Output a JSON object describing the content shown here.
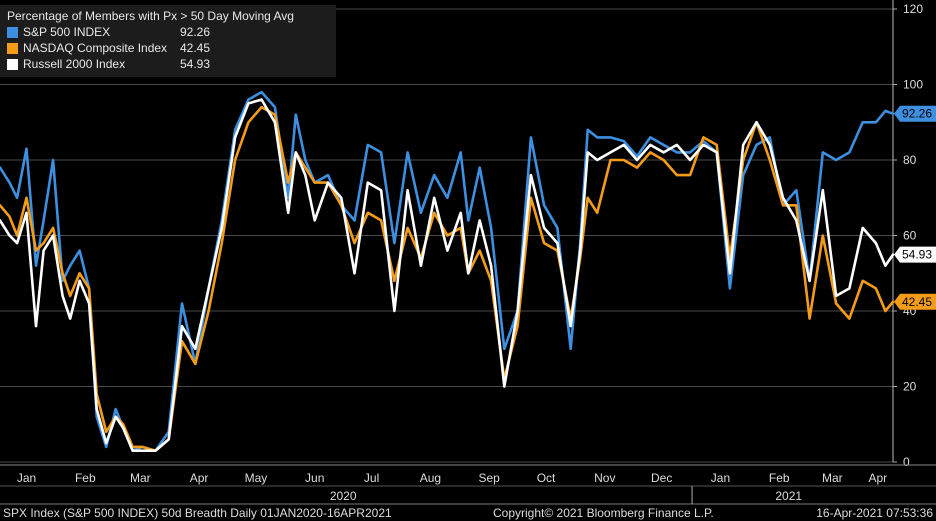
{
  "chart_data": {
    "type": "line",
    "title": "Percentage of Members with Px > 50 Day Moving Avg",
    "ylim": [
      0,
      120
    ],
    "yticks": [
      0,
      20,
      40,
      60,
      80,
      100,
      120
    ],
    "x_start": "2020-01-01",
    "x_end": "2021-04-16",
    "month_ticks": [
      {
        "label": "Jan",
        "date": "2020-01-15"
      },
      {
        "label": "Feb",
        "date": "2020-02-15"
      },
      {
        "label": "Mar",
        "date": "2020-03-15"
      },
      {
        "label": "Apr",
        "date": "2020-04-15"
      },
      {
        "label": "May",
        "date": "2020-05-15"
      },
      {
        "label": "Jun",
        "date": "2020-06-15"
      },
      {
        "label": "Jul",
        "date": "2020-07-15"
      },
      {
        "label": "Aug",
        "date": "2020-08-15"
      },
      {
        "label": "Sep",
        "date": "2020-09-15"
      },
      {
        "label": "Oct",
        "date": "2020-10-15"
      },
      {
        "label": "Nov",
        "date": "2020-11-15"
      },
      {
        "label": "Dec",
        "date": "2020-12-15"
      },
      {
        "label": "Jan",
        "date": "2021-01-15"
      },
      {
        "label": "Feb",
        "date": "2021-02-15"
      },
      {
        "label": "Mar",
        "date": "2021-03-15"
      },
      {
        "label": "Apr",
        "date": "2021-04-08"
      }
    ],
    "year_labels": [
      {
        "label": "2020",
        "date": "2020-06-30"
      },
      {
        "label": "2021",
        "date": "2021-02-20"
      }
    ],
    "year_divider_date": "2020-12-31",
    "grid": true,
    "legend_position": "top-left",
    "series": [
      {
        "name": "S&P 500 INDEX",
        "last_value": 92.26,
        "last_label": "92.26",
        "color": "#3d8fe0",
        "dates": [
          "2020-01-01",
          "2020-01-06",
          "2020-01-10",
          "2020-01-15",
          "2020-01-20",
          "2020-01-24",
          "2020-01-29",
          "2020-02-03",
          "2020-02-07",
          "2020-02-12",
          "2020-02-17",
          "2020-02-21",
          "2020-02-26",
          "2020-03-02",
          "2020-03-06",
          "2020-03-11",
          "2020-03-16",
          "2020-03-23",
          "2020-03-30",
          "2020-04-06",
          "2020-04-13",
          "2020-04-20",
          "2020-04-27",
          "2020-05-04",
          "2020-05-11",
          "2020-05-18",
          "2020-05-25",
          "2020-06-01",
          "2020-06-05",
          "2020-06-10",
          "2020-06-15",
          "2020-06-22",
          "2020-06-29",
          "2020-07-06",
          "2020-07-13",
          "2020-07-20",
          "2020-07-27",
          "2020-08-03",
          "2020-08-10",
          "2020-08-17",
          "2020-08-24",
          "2020-08-31",
          "2020-09-04",
          "2020-09-10",
          "2020-09-16",
          "2020-09-23",
          "2020-09-30",
          "2020-10-07",
          "2020-10-14",
          "2020-10-21",
          "2020-10-28",
          "2020-11-02",
          "2020-11-06",
          "2020-11-11",
          "2020-11-18",
          "2020-11-25",
          "2020-12-02",
          "2020-12-09",
          "2020-12-16",
          "2020-12-23",
          "2020-12-30",
          "2021-01-06",
          "2021-01-13",
          "2021-01-20",
          "2021-01-27",
          "2021-02-03",
          "2021-02-10",
          "2021-02-17",
          "2021-02-24",
          "2021-03-03",
          "2021-03-10",
          "2021-03-17",
          "2021-03-24",
          "2021-03-31",
          "2021-04-07",
          "2021-04-12",
          "2021-04-16"
        ],
        "values": [
          78,
          74,
          70,
          83,
          52,
          64,
          80,
          48,
          52,
          56,
          46,
          12,
          4,
          14,
          9,
          3,
          4,
          3,
          8,
          42,
          26,
          46,
          64,
          88,
          96,
          98,
          94,
          70,
          92,
          80,
          74,
          76,
          68,
          64,
          84,
          82,
          58,
          82,
          66,
          76,
          70,
          82,
          64,
          78,
          62,
          30,
          40,
          86,
          68,
          62,
          30,
          58,
          88,
          86,
          86,
          85,
          81,
          86,
          84,
          82,
          82,
          85,
          82,
          46,
          76,
          84,
          86,
          68,
          72,
          48,
          82,
          80,
          82,
          90,
          90,
          93,
          92.26
        ]
      },
      {
        "name": "NASDAQ Composite Index",
        "last_value": 42.45,
        "last_label": "42.45",
        "color": "#f39c1a",
        "dates": [
          "2020-01-01",
          "2020-01-06",
          "2020-01-10",
          "2020-01-15",
          "2020-01-20",
          "2020-01-24",
          "2020-01-29",
          "2020-02-03",
          "2020-02-07",
          "2020-02-12",
          "2020-02-17",
          "2020-02-21",
          "2020-02-26",
          "2020-03-02",
          "2020-03-06",
          "2020-03-11",
          "2020-03-16",
          "2020-03-23",
          "2020-03-30",
          "2020-04-06",
          "2020-04-13",
          "2020-04-20",
          "2020-04-27",
          "2020-05-04",
          "2020-05-11",
          "2020-05-18",
          "2020-05-25",
          "2020-06-01",
          "2020-06-05",
          "2020-06-10",
          "2020-06-15",
          "2020-06-22",
          "2020-06-29",
          "2020-07-06",
          "2020-07-13",
          "2020-07-20",
          "2020-07-27",
          "2020-08-03",
          "2020-08-10",
          "2020-08-17",
          "2020-08-24",
          "2020-08-31",
          "2020-09-04",
          "2020-09-10",
          "2020-09-16",
          "2020-09-23",
          "2020-09-30",
          "2020-10-07",
          "2020-10-14",
          "2020-10-21",
          "2020-10-28",
          "2020-11-02",
          "2020-11-06",
          "2020-11-11",
          "2020-11-18",
          "2020-11-25",
          "2020-12-02",
          "2020-12-09",
          "2020-12-16",
          "2020-12-23",
          "2020-12-30",
          "2021-01-06",
          "2021-01-13",
          "2021-01-20",
          "2021-01-27",
          "2021-02-03",
          "2021-02-10",
          "2021-02-17",
          "2021-02-24",
          "2021-03-03",
          "2021-03-10",
          "2021-03-17",
          "2021-03-24",
          "2021-03-31",
          "2021-04-07",
          "2021-04-12",
          "2021-04-16"
        ],
        "values": [
          68,
          65,
          60,
          70,
          56,
          58,
          62,
          50,
          44,
          50,
          46,
          18,
          8,
          12,
          10,
          4,
          4,
          3,
          6,
          32,
          26,
          40,
          58,
          80,
          90,
          94,
          92,
          74,
          82,
          78,
          74,
          74,
          68,
          58,
          66,
          64,
          48,
          62,
          54,
          66,
          60,
          62,
          50,
          56,
          48,
          22,
          36,
          70,
          58,
          56,
          38,
          54,
          70,
          66,
          80,
          80,
          78,
          82,
          80,
          76,
          76,
          86,
          84,
          54,
          80,
          90,
          80,
          68,
          68,
          38,
          60,
          42,
          38,
          48,
          46,
          40,
          42.45
        ]
      },
      {
        "name": "Russell 2000 Index",
        "last_value": 54.93,
        "last_label": "54.93",
        "color": "#ffffff",
        "dates": [
          "2020-01-01",
          "2020-01-06",
          "2020-01-10",
          "2020-01-15",
          "2020-01-20",
          "2020-01-24",
          "2020-01-29",
          "2020-02-03",
          "2020-02-07",
          "2020-02-12",
          "2020-02-17",
          "2020-02-21",
          "2020-02-26",
          "2020-03-02",
          "2020-03-06",
          "2020-03-11",
          "2020-03-16",
          "2020-03-23",
          "2020-03-30",
          "2020-04-06",
          "2020-04-13",
          "2020-04-20",
          "2020-04-27",
          "2020-05-04",
          "2020-05-11",
          "2020-05-18",
          "2020-05-25",
          "2020-06-01",
          "2020-06-05",
          "2020-06-10",
          "2020-06-15",
          "2020-06-22",
          "2020-06-29",
          "2020-07-06",
          "2020-07-13",
          "2020-07-20",
          "2020-07-27",
          "2020-08-03",
          "2020-08-10",
          "2020-08-17",
          "2020-08-24",
          "2020-08-31",
          "2020-09-04",
          "2020-09-10",
          "2020-09-16",
          "2020-09-23",
          "2020-09-30",
          "2020-10-07",
          "2020-10-14",
          "2020-10-21",
          "2020-10-28",
          "2020-11-02",
          "2020-11-06",
          "2020-11-11",
          "2020-11-18",
          "2020-11-25",
          "2020-12-02",
          "2020-12-09",
          "2020-12-16",
          "2020-12-23",
          "2020-12-30",
          "2021-01-06",
          "2021-01-13",
          "2021-01-20",
          "2021-01-27",
          "2021-02-03",
          "2021-02-10",
          "2021-02-17",
          "2021-02-24",
          "2021-03-03",
          "2021-03-10",
          "2021-03-17",
          "2021-03-24",
          "2021-03-31",
          "2021-04-07",
          "2021-04-12",
          "2021-04-16"
        ],
        "values": [
          64,
          60,
          58,
          66,
          36,
          56,
          60,
          44,
          38,
          48,
          42,
          14,
          5,
          12,
          9,
          3,
          3,
          3,
          6,
          36,
          30,
          46,
          62,
          86,
          95,
          96,
          90,
          66,
          82,
          76,
          64,
          74,
          70,
          50,
          74,
          72,
          40,
          72,
          52,
          70,
          56,
          66,
          50,
          64,
          52,
          20,
          40,
          76,
          62,
          58,
          36,
          56,
          82,
          80,
          82,
          84,
          80,
          84,
          82,
          84,
          80,
          84,
          82,
          50,
          84,
          90,
          84,
          70,
          64,
          48,
          72,
          44,
          46,
          62,
          58,
          52,
          54.93
        ]
      }
    ],
    "footer": {
      "left": "SPX Index (S&P 500 INDEX) 50d Breadth  Daily 01JAN2020-16APR2021",
      "center": "Copyright© 2021 Bloomberg Finance L.P.",
      "right": "16-Apr-2021 07:53:36"
    }
  }
}
